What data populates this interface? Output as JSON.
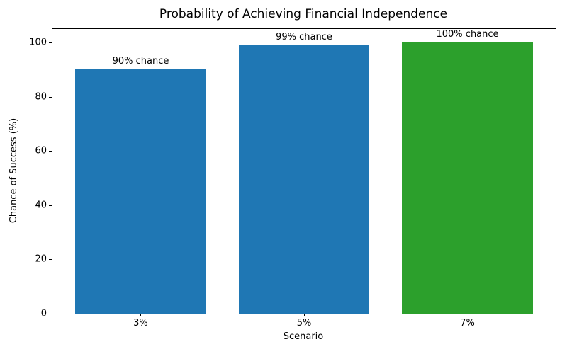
{
  "chart_data": {
    "type": "bar",
    "title": "Probability of Achieving Financial Independence",
    "xlabel": "Scenario",
    "ylabel": "Chance of Success (%)",
    "categories": [
      "3%",
      "5%",
      "7%"
    ],
    "values": [
      90,
      99,
      100
    ],
    "bar_value_labels": [
      "90% chance",
      "99% chance",
      "100% chance"
    ],
    "bar_colors": [
      "#1f77b4",
      "#1f77b4",
      "#2ca02c"
    ],
    "yticks": [
      0,
      20,
      40,
      60,
      80,
      100
    ],
    "ylim": [
      0,
      105
    ],
    "bar_width_fraction": 0.8,
    "grid": false,
    "legend_position": "none",
    "background_color": "#ffffff",
    "spine_color": "#000000",
    "text_color": "#000000"
  }
}
